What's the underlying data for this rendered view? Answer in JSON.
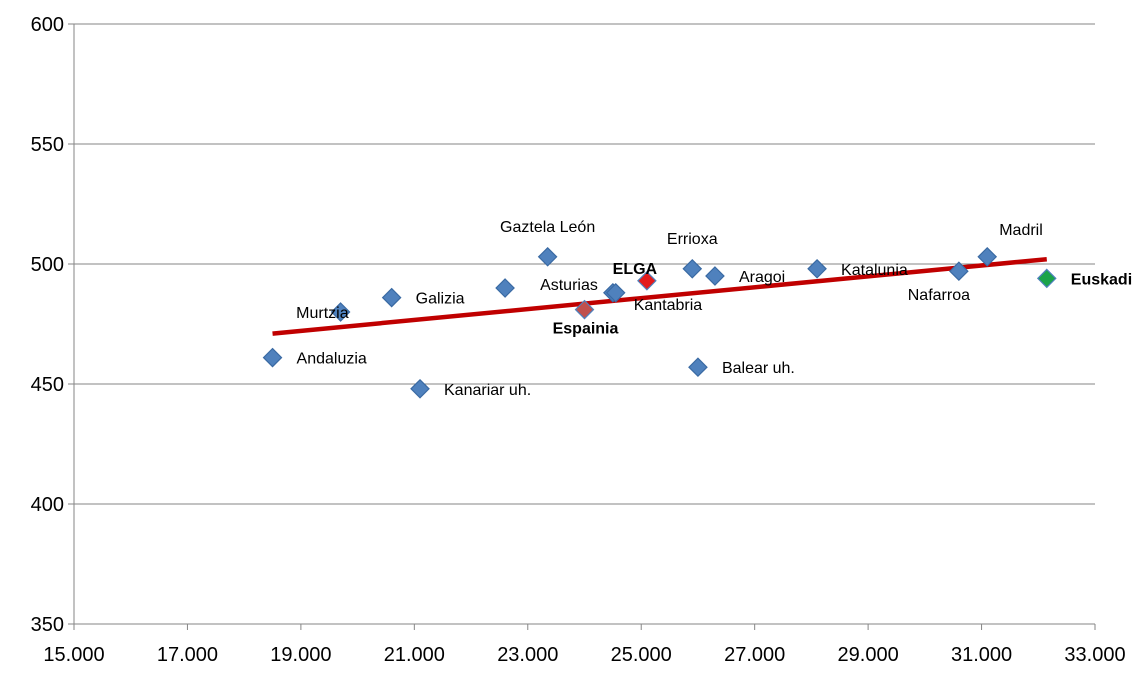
{
  "chart_data": {
    "type": "scatter",
    "title": "",
    "xlabel": "",
    "ylabel": "",
    "xlim": [
      15000,
      33000
    ],
    "ylim": [
      350,
      600
    ],
    "x_ticks": [
      15000,
      17000,
      19000,
      21000,
      23000,
      25000,
      27000,
      29000,
      31000,
      33000
    ],
    "x_tick_labels": [
      "15.000",
      "17.000",
      "19.000",
      "21.000",
      "23.000",
      "25.000",
      "27.000",
      "29.000",
      "31.000",
      "33.000"
    ],
    "y_ticks": [
      350,
      400,
      450,
      500,
      550,
      600
    ],
    "y_tick_labels": [
      "350",
      "400",
      "450",
      "500",
      "550",
      "600"
    ],
    "grid": "horizontal",
    "legend": "none",
    "colors": {
      "region": "#4f81bd",
      "elga": "#e31b1b",
      "espainia": "#c0504d",
      "euskadi": "#1aa34a",
      "trend": "#c00000",
      "grid": "#868686"
    },
    "points": [
      {
        "label": "Andaluzia",
        "x": 18500,
        "y": 461,
        "kind": "region",
        "bold": false,
        "anchor": "right"
      },
      {
        "label": "Murtzia",
        "x": 19700,
        "y": 480,
        "kind": "region",
        "bold": false,
        "anchor": "on"
      },
      {
        "label": "Galizia",
        "x": 20600,
        "y": 486,
        "kind": "region",
        "bold": false,
        "anchor": "right"
      },
      {
        "label": "Kanariar uh.",
        "x": 21100,
        "y": 448,
        "kind": "region",
        "bold": false,
        "anchor": "right"
      },
      {
        "label": "",
        "x": 22600,
        "y": 490,
        "kind": "region",
        "bold": false,
        "anchor": "none"
      },
      {
        "label": "Gaztela León",
        "x": 23350,
        "y": 503,
        "kind": "region",
        "bold": false,
        "anchor": "above"
      },
      {
        "label": "Asturias",
        "x": 24500,
        "y": 488,
        "kind": "region",
        "bold": false,
        "anchor": "left"
      },
      {
        "label": "Espainia",
        "x": 24000,
        "y": 481,
        "kind": "espainia",
        "bold": true,
        "anchor": "below"
      },
      {
        "label": "ELGA",
        "x": 25100,
        "y": 493,
        "kind": "elga",
        "bold": true,
        "anchor": "above-left"
      },
      {
        "label": "Kantabria",
        "x": 24550,
        "y": 488,
        "kind": "region",
        "bold": false,
        "anchor": "below-right"
      },
      {
        "label": "Errioxa",
        "x": 25900,
        "y": 498,
        "kind": "region",
        "bold": false,
        "anchor": "above"
      },
      {
        "label": "Aragoi",
        "x": 26300,
        "y": 495,
        "kind": "region",
        "bold": false,
        "anchor": "right"
      },
      {
        "label": "Balear uh.",
        "x": 26000,
        "y": 457,
        "kind": "region",
        "bold": false,
        "anchor": "right"
      },
      {
        "label": "Katalunia",
        "x": 28100,
        "y": 498,
        "kind": "region",
        "bold": false,
        "anchor": "right"
      },
      {
        "label": "Nafarroa",
        "x": 30600,
        "y": 497,
        "kind": "region",
        "bold": false,
        "anchor": "below-left"
      },
      {
        "label": "Madril",
        "x": 31100,
        "y": 503,
        "kind": "region",
        "bold": false,
        "anchor": "above-right"
      },
      {
        "label": "Euskadi",
        "x": 32150,
        "y": 494,
        "kind": "euskadi",
        "bold": true,
        "anchor": "right"
      }
    ],
    "trendline": {
      "x": [
        18500,
        32150
      ],
      "y": [
        471,
        502
      ]
    }
  }
}
